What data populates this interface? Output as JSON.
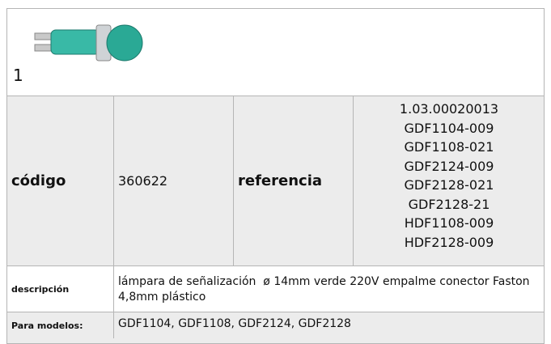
{
  "item_number": "1",
  "codigo": {
    "label": "código",
    "value": "360622"
  },
  "referencia": {
    "label": "referencia",
    "values": [
      "1.03.00020013",
      "GDF1104-009",
      "GDF1108-021",
      "GDF2124-009",
      "GDF2128-021",
      "GDF2128-21",
      "HDF1108-009",
      "HDF2128-009"
    ]
  },
  "descripcion": {
    "label": "descripción",
    "value": "lámpara de señalización  ø 14mm verde 220V empalme conector Faston 4,8mm plástico"
  },
  "modelos": {
    "label": "Para modelos:",
    "value": "GDF1104, GDF1108, GDF2124, GDF2128"
  }
}
